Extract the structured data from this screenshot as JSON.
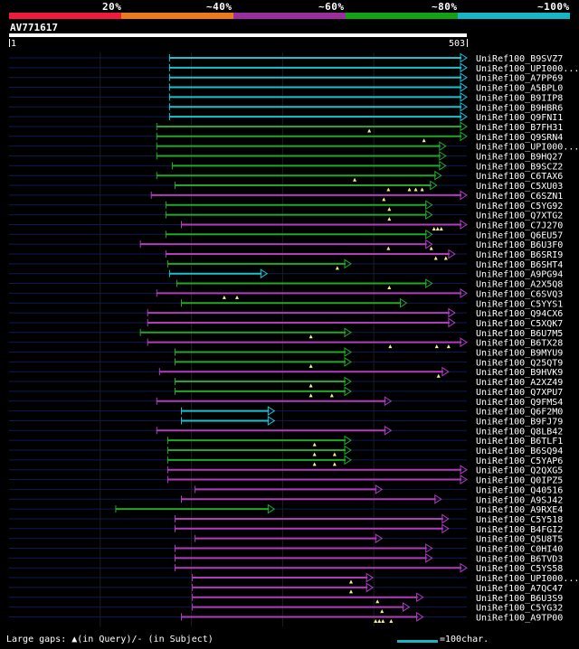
{
  "colors": {
    "band_20": "#ef1a3c",
    "band_40": "#ea7a1b",
    "band_60": "#9b2e9d",
    "band_80": "#14a214",
    "band_100": "#16b6c4",
    "hit_cyan": "#19c3d2",
    "hit_green": "#21a82a",
    "hit_magenta": "#b13cc0",
    "background_line": "#0d1a55",
    "grid_line": "#1e1e1e",
    "gap_marker": "#f7f28a"
  },
  "scale": {
    "labels": [
      "20%",
      "~40%",
      "~60%",
      "~80%",
      "~100%"
    ]
  },
  "query": {
    "accession": "AV771617",
    "start_label": "1",
    "end_label": "503",
    "length": 503
  },
  "hits": [
    {
      "id": "UniRef100_B9SVZ7",
      "color": "cyan",
      "start": 177,
      "end": 503,
      "gaps": []
    },
    {
      "id": "UniRef100_UPI000...",
      "color": "cyan",
      "start": 177,
      "end": 503,
      "gaps": []
    },
    {
      "id": "UniRef100_A7PP69",
      "color": "cyan",
      "start": 177,
      "end": 503,
      "gaps": []
    },
    {
      "id": "UniRef100_A5BPL0",
      "color": "cyan",
      "start": 177,
      "end": 503,
      "gaps": []
    },
    {
      "id": "UniRef100_B9IIP8",
      "color": "cyan",
      "start": 177,
      "end": 503,
      "gaps": []
    },
    {
      "id": "UniRef100_B9HBR6",
      "color": "cyan",
      "start": 177,
      "end": 503,
      "gaps": []
    },
    {
      "id": "UniRef100_Q9FNI1",
      "color": "cyan",
      "start": 177,
      "end": 503,
      "gaps": []
    },
    {
      "id": "UniRef100_B7FH31",
      "color": "green",
      "start": 163,
      "end": 503,
      "gaps": [
        396
      ]
    },
    {
      "id": "UniRef100_Q9SRN4",
      "color": "green",
      "start": 163,
      "end": 503,
      "gaps": [
        456
      ]
    },
    {
      "id": "UniRef100_UPI000...",
      "color": "green",
      "start": 163,
      "end": 480,
      "gaps": []
    },
    {
      "id": "UniRef100_B9HQ27",
      "color": "green",
      "start": 163,
      "end": 480,
      "gaps": []
    },
    {
      "id": "UniRef100_B9SCZ2",
      "color": "green",
      "start": 180,
      "end": 480,
      "gaps": []
    },
    {
      "id": "UniRef100_C6TAX6",
      "color": "green",
      "start": 163,
      "end": 475,
      "gaps": [
        380
      ]
    },
    {
      "id": "UniRef100_C5XU03",
      "color": "green",
      "start": 183,
      "end": 470,
      "gaps": [
        417,
        440,
        447,
        454
      ]
    },
    {
      "id": "UniRef100_C6SZN1",
      "color": "magenta",
      "start": 157,
      "end": 503,
      "gaps": [
        412
      ]
    },
    {
      "id": "UniRef100_C5YG92",
      "color": "green",
      "start": 173,
      "end": 465,
      "gaps": [
        418
      ]
    },
    {
      "id": "UniRef100_Q7XTG2",
      "color": "green",
      "start": 173,
      "end": 465,
      "gaps": [
        418
      ]
    },
    {
      "id": "UniRef100_C7J270",
      "color": "magenta",
      "start": 190,
      "end": 503,
      "gaps": [
        467,
        471,
        475
      ]
    },
    {
      "id": "UniRef100_Q6EU57",
      "color": "green",
      "start": 173,
      "end": 465,
      "gaps": []
    },
    {
      "id": "UniRef100_B6U3F0",
      "color": "magenta",
      "start": 145,
      "end": 465,
      "gaps": [
        417,
        464
      ]
    },
    {
      "id": "UniRef100_B6SRI9",
      "color": "magenta",
      "start": 173,
      "end": 490,
      "gaps": [
        469,
        480
      ]
    },
    {
      "id": "UniRef100_B6SHT4",
      "color": "green",
      "start": 175,
      "end": 376,
      "gaps": [
        361
      ]
    },
    {
      "id": "UniRef100_A9PG94",
      "color": "cyan",
      "start": 177,
      "end": 284,
      "gaps": []
    },
    {
      "id": "UniRef100_A2X5Q8",
      "color": "green",
      "start": 185,
      "end": 465,
      "gaps": [
        418
      ]
    },
    {
      "id": "UniRef100_C6SVQ3",
      "color": "magenta",
      "start": 163,
      "end": 503,
      "gaps": [
        237,
        251
      ]
    },
    {
      "id": "UniRef100_C5YYS1",
      "color": "green",
      "start": 190,
      "end": 437,
      "gaps": []
    },
    {
      "id": "UniRef100_Q94CX6",
      "color": "magenta",
      "start": 153,
      "end": 490,
      "gaps": []
    },
    {
      "id": "UniRef100_C5XQK7",
      "color": "magenta",
      "start": 153,
      "end": 490,
      "gaps": []
    },
    {
      "id": "UniRef100_B6U7M5",
      "color": "green",
      "start": 145,
      "end": 376,
      "gaps": [
        332
      ]
    },
    {
      "id": "UniRef100_B6TX28",
      "color": "magenta",
      "start": 153,
      "end": 503,
      "gaps": [
        419,
        470,
        483
      ]
    },
    {
      "id": "UniRef100_B9MYU9",
      "color": "green",
      "start": 183,
      "end": 376,
      "gaps": []
    },
    {
      "id": "UniRef100_Q25QT9",
      "color": "green",
      "start": 183,
      "end": 376,
      "gaps": [
        332
      ]
    },
    {
      "id": "UniRef100_B9HVK9",
      "color": "magenta",
      "start": 166,
      "end": 483,
      "gaps": [
        472
      ]
    },
    {
      "id": "UniRef100_A2XZ49",
      "color": "green",
      "start": 183,
      "end": 376,
      "gaps": [
        332
      ]
    },
    {
      "id": "UniRef100_Q7XPU7",
      "color": "green",
      "start": 183,
      "end": 376,
      "gaps": [
        332,
        355
      ]
    },
    {
      "id": "UniRef100_Q9FMS4",
      "color": "magenta",
      "start": 163,
      "end": 420,
      "gaps": []
    },
    {
      "id": "UniRef100_Q6F2M0",
      "color": "cyan",
      "start": 190,
      "end": 292,
      "gaps": []
    },
    {
      "id": "UniRef100_B9FJ79",
      "color": "cyan",
      "start": 190,
      "end": 292,
      "gaps": []
    },
    {
      "id": "UniRef100_Q8LB42",
      "color": "magenta",
      "start": 163,
      "end": 420,
      "gaps": []
    },
    {
      "id": "UniRef100_B6TLF1",
      "color": "green",
      "start": 175,
      "end": 376,
      "gaps": [
        336
      ]
    },
    {
      "id": "UniRef100_B6SQ94",
      "color": "green",
      "start": 175,
      "end": 376,
      "gaps": [
        336,
        358
      ]
    },
    {
      "id": "UniRef100_C5YAP6",
      "color": "green",
      "start": 175,
      "end": 376,
      "gaps": [
        336,
        358
      ]
    },
    {
      "id": "UniRef100_Q2QXG5",
      "color": "magenta",
      "start": 175,
      "end": 503,
      "gaps": []
    },
    {
      "id": "UniRef100_Q0IPZ5",
      "color": "magenta",
      "start": 175,
      "end": 503,
      "gaps": []
    },
    {
      "id": "UniRef100_Q40516",
      "color": "magenta",
      "start": 205,
      "end": 410,
      "gaps": []
    },
    {
      "id": "UniRef100_A9SJ42",
      "color": "magenta",
      "start": 190,
      "end": 475,
      "gaps": []
    },
    {
      "id": "UniRef100_A9RXE4",
      "color": "green",
      "start": 118,
      "end": 292,
      "gaps": []
    },
    {
      "id": "UniRef100_C5Y518",
      "color": "magenta",
      "start": 183,
      "end": 483,
      "gaps": []
    },
    {
      "id": "UniRef100_B4FGI2",
      "color": "magenta",
      "start": 183,
      "end": 483,
      "gaps": []
    },
    {
      "id": "UniRef100_Q5U8T5",
      "color": "magenta",
      "start": 205,
      "end": 410,
      "gaps": []
    },
    {
      "id": "UniRef100_C0HI40",
      "color": "magenta",
      "start": 183,
      "end": 465,
      "gaps": []
    },
    {
      "id": "UniRef100_B6TVD3",
      "color": "magenta",
      "start": 183,
      "end": 465,
      "gaps": []
    },
    {
      "id": "UniRef100_C5YS58",
      "color": "magenta",
      "start": 183,
      "end": 503,
      "gaps": []
    },
    {
      "id": "UniRef100_UPI000...",
      "color": "magenta",
      "start": 202,
      "end": 400,
      "gaps": [
        376
      ]
    },
    {
      "id": "UniRef100_A7QC47",
      "color": "magenta",
      "start": 202,
      "end": 400,
      "gaps": [
        376
      ]
    },
    {
      "id": "UniRef100_B6U3S9",
      "color": "magenta",
      "start": 202,
      "end": 455,
      "gaps": [
        405
      ]
    },
    {
      "id": "UniRef100_C5YG32",
      "color": "magenta",
      "start": 202,
      "end": 440,
      "gaps": [
        410
      ]
    },
    {
      "id": "UniRef100_A9TP00",
      "color": "magenta",
      "start": 190,
      "end": 455,
      "gaps": [
        403,
        407,
        411,
        420
      ]
    }
  ],
  "legend": {
    "gaps_text": "Large gaps: ▲(in Query)/- (in Subject)",
    "scale_text": "=100char."
  }
}
